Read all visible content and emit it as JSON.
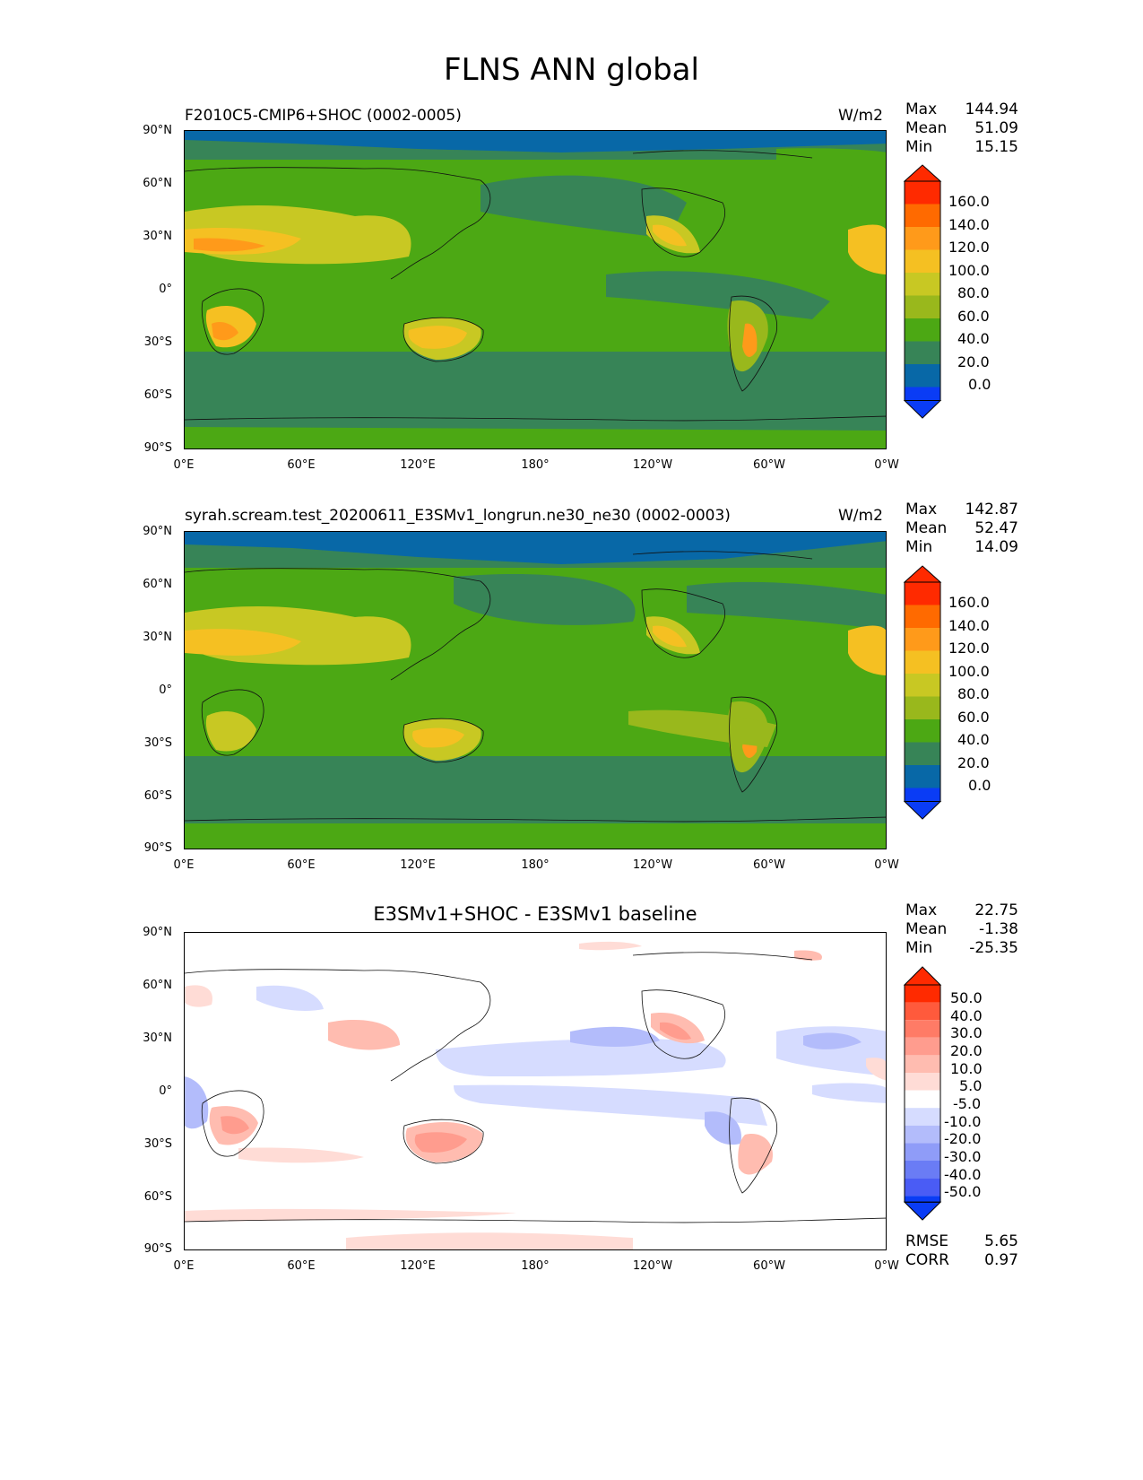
{
  "figure": {
    "title": "FLNS ANN global"
  },
  "lat_ticks": [
    "90°N",
    "60°N",
    "30°N",
    "0°",
    "30°S",
    "60°S",
    "90°S"
  ],
  "lon_ticks": [
    "0°E",
    "60°E",
    "120°E",
    "180°",
    "120°W",
    "60°W",
    "0°W"
  ],
  "panels": [
    {
      "id": "test",
      "title": "F2010C5-CMIP6+SHOC (0002-0005)",
      "units": "W/m2",
      "stats": [
        {
          "label": "Max",
          "value": "144.94"
        },
        {
          "label": "Mean",
          "value": "51.09"
        },
        {
          "label": "Min",
          "value": "15.15"
        }
      ],
      "colorbar": {
        "levels": [
          "160.0",
          "140.0",
          "120.0",
          "100.0",
          "80.0",
          "60.0",
          "40.0",
          "20.0",
          "0.0"
        ],
        "colors": [
          "#ff2a00",
          "#ff6a00",
          "#ff9a1a",
          "#f5c022",
          "#c8c823",
          "#99b81c",
          "#4ca814",
          "#378457",
          "#0868a7",
          "#0a3cf5"
        ]
      }
    },
    {
      "id": "ref",
      "title": "syrah.scream.test_20200611_E3SMv1_longrun.ne30_ne30 (0002-0003)",
      "units": "W/m2",
      "stats": [
        {
          "label": "Max",
          "value": "142.87"
        },
        {
          "label": "Mean",
          "value": "52.47"
        },
        {
          "label": "Min",
          "value": "14.09"
        }
      ],
      "colorbar": {
        "levels": [
          "160.0",
          "140.0",
          "120.0",
          "100.0",
          "80.0",
          "60.0",
          "40.0",
          "20.0",
          "0.0"
        ],
        "colors": [
          "#ff2a00",
          "#ff6a00",
          "#ff9a1a",
          "#f5c022",
          "#c8c823",
          "#99b81c",
          "#4ca814",
          "#378457",
          "#0868a7",
          "#0a3cf5"
        ]
      }
    },
    {
      "id": "diff",
      "title": "E3SMv1+SHOC - E3SMv1 baseline",
      "units": "",
      "stats": [
        {
          "label": "Max",
          "value": "22.75"
        },
        {
          "label": "Mean",
          "value": "-1.38"
        },
        {
          "label": "Min",
          "value": "-25.35"
        }
      ],
      "extra_stats": [
        {
          "label": "RMSE",
          "value": "5.65"
        },
        {
          "label": "CORR",
          "value": "0.97"
        }
      ],
      "colorbar": {
        "levels": [
          "50.0",
          "40.0",
          "30.0",
          "20.0",
          "10.0",
          "5.0",
          "-5.0",
          "-10.0",
          "-20.0",
          "-30.0",
          "-40.0",
          "-50.0"
        ],
        "colors": [
          "#ff2a00",
          "#ff5a3c",
          "#ff7b66",
          "#ff9c8e",
          "#ffbcb0",
          "#ffdcd6",
          "#ffffff",
          "#d6dcff",
          "#b3bcfb",
          "#8f9cf8",
          "#6a7cf5",
          "#4a5cf5",
          "#0a3cf5"
        ]
      }
    }
  ]
}
